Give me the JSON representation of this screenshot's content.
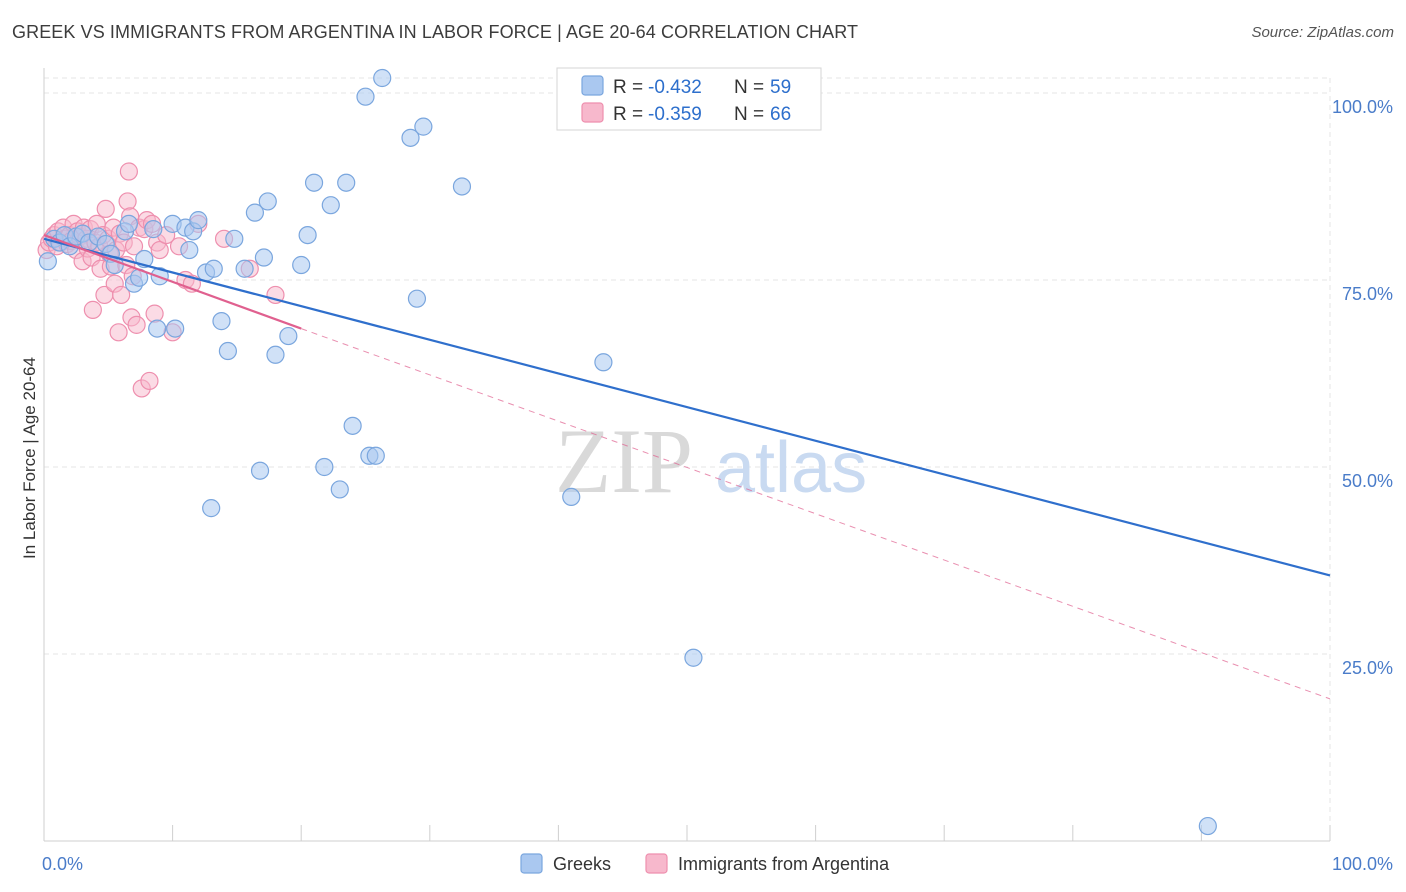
{
  "title": "GREEK VS IMMIGRANTS FROM ARGENTINA IN LABOR FORCE | AGE 20-64 CORRELATION CHART",
  "source": "Source: ZipAtlas.com",
  "watermark": {
    "zip": "ZIP",
    "atlas": "atlas"
  },
  "legend": {
    "rows": [
      {
        "r_label": "R = ",
        "r_value": "-0.432",
        "n_label": "N = ",
        "n_value": "59",
        "color": "#aac8f0"
      },
      {
        "r_label": "R = ",
        "r_value": "-0.359",
        "n_label": "N = ",
        "n_value": "66",
        "color": "#f7b8cc"
      }
    ]
  },
  "colors": {
    "greek_fill": "#aac8f0",
    "greek_stroke": "#7aa6de",
    "greek_line": "#2f6fcc",
    "arg_fill": "#f7b8cc",
    "arg_stroke": "#ee8fae",
    "arg_line": "#e0608f",
    "tick_text": "#4a7cc9"
  },
  "chart_data": {
    "type": "scatter",
    "title": "GREEK VS IMMIGRANTS FROM ARGENTINA IN LABOR FORCE | AGE 20-64 CORRELATION CHART",
    "xlabel": "",
    "ylabel": "In Labor Force | Age 20-64",
    "xlim": [
      0,
      100
    ],
    "ylim": [
      0,
      102
    ],
    "x_tick_labels": [
      "0.0%",
      "100.0%"
    ],
    "y_ticks": [
      {
        "value": 25,
        "label": "25.0%"
      },
      {
        "value": 50,
        "label": "50.0%"
      },
      {
        "value": 75,
        "label": "75.0%"
      },
      {
        "value": 100,
        "label": "100.0%"
      }
    ],
    "grid": true,
    "legend_position": "bottom",
    "series": [
      {
        "name": "Greeks",
        "r": -0.432,
        "n": 59,
        "trend": {
          "x0": 0,
          "y0": 80.5,
          "x1": 100,
          "y1": 35.5
        },
        "points": [
          [
            0.3,
            77.5
          ],
          [
            0.8,
            80.5
          ],
          [
            1.2,
            80.0
          ],
          [
            1.6,
            81.0
          ],
          [
            2.0,
            79.5
          ],
          [
            2.5,
            80.8
          ],
          [
            3.0,
            81.2
          ],
          [
            3.5,
            80.0
          ],
          [
            4.2,
            80.8
          ],
          [
            4.8,
            79.8
          ],
          [
            5.2,
            78.5
          ],
          [
            5.5,
            77.0
          ],
          [
            6.3,
            81.5
          ],
          [
            6.6,
            82.5
          ],
          [
            7.0,
            74.5
          ],
          [
            7.4,
            75.3
          ],
          [
            7.8,
            77.8
          ],
          [
            8.5,
            81.8
          ],
          [
            8.8,
            68.5
          ],
          [
            9.0,
            75.5
          ],
          [
            10.0,
            82.5
          ],
          [
            10.2,
            68.5
          ],
          [
            11.0,
            82.0
          ],
          [
            11.3,
            79.0
          ],
          [
            11.6,
            81.5
          ],
          [
            12.0,
            83.0
          ],
          [
            12.6,
            76.0
          ],
          [
            13.0,
            44.5
          ],
          [
            13.2,
            76.5
          ],
          [
            13.8,
            69.5
          ],
          [
            14.3,
            65.5
          ],
          [
            14.8,
            80.5
          ],
          [
            15.6,
            76.5
          ],
          [
            16.4,
            84.0
          ],
          [
            16.8,
            49.5
          ],
          [
            17.1,
            78.0
          ],
          [
            17.4,
            85.5
          ],
          [
            18.0,
            65.0
          ],
          [
            19.0,
            67.5
          ],
          [
            20.0,
            77.0
          ],
          [
            20.5,
            81.0
          ],
          [
            21.0,
            88.0
          ],
          [
            21.8,
            50.0
          ],
          [
            22.3,
            85.0
          ],
          [
            23.0,
            47.0
          ],
          [
            23.5,
            88.0
          ],
          [
            24.0,
            55.5
          ],
          [
            25.0,
            99.5
          ],
          [
            25.3,
            51.5
          ],
          [
            25.8,
            51.5
          ],
          [
            26.3,
            102.0
          ],
          [
            28.5,
            94.0
          ],
          [
            29.0,
            72.5
          ],
          [
            29.5,
            95.5
          ],
          [
            32.5,
            87.5
          ],
          [
            41.0,
            46.0
          ],
          [
            43.5,
            64.0
          ],
          [
            50.5,
            24.5
          ],
          [
            90.5,
            2.0
          ]
        ]
      },
      {
        "name": "Immigrants from Argentina",
        "r": -0.359,
        "n": 66,
        "trend": {
          "x0": 0,
          "y0": 81.0,
          "x1": 20,
          "y1": 68.5,
          "dash_x1": 100,
          "dash_y1": 19.0
        },
        "points": [
          [
            0.2,
            79.0
          ],
          [
            0.4,
            80.0
          ],
          [
            0.6,
            80.5
          ],
          [
            0.8,
            81.0
          ],
          [
            1.0,
            79.5
          ],
          [
            1.1,
            81.5
          ],
          [
            1.3,
            80.0
          ],
          [
            1.5,
            82.0
          ],
          [
            1.6,
            80.5
          ],
          [
            1.8,
            79.8
          ],
          [
            2.0,
            81.0
          ],
          [
            2.1,
            80.2
          ],
          [
            2.3,
            82.5
          ],
          [
            2.5,
            79.0
          ],
          [
            2.6,
            81.5
          ],
          [
            2.8,
            80.8
          ],
          [
            3.0,
            77.5
          ],
          [
            3.1,
            82.0
          ],
          [
            3.3,
            80.5
          ],
          [
            3.4,
            79.2
          ],
          [
            3.6,
            81.8
          ],
          [
            3.7,
            78.0
          ],
          [
            3.8,
            71.0
          ],
          [
            4.0,
            80.0
          ],
          [
            4.1,
            82.5
          ],
          [
            4.3,
            79.5
          ],
          [
            4.4,
            76.5
          ],
          [
            4.6,
            81.0
          ],
          [
            4.7,
            73.0
          ],
          [
            4.8,
            84.5
          ],
          [
            5.0,
            80.5
          ],
          [
            5.1,
            78.5
          ],
          [
            5.2,
            76.8
          ],
          [
            5.4,
            82.0
          ],
          [
            5.5,
            74.5
          ],
          [
            5.6,
            79.0
          ],
          [
            5.8,
            68.0
          ],
          [
            5.9,
            81.2
          ],
          [
            6.0,
            73.0
          ],
          [
            6.2,
            80.0
          ],
          [
            6.4,
            77.0
          ],
          [
            6.5,
            85.5
          ],
          [
            6.6,
            89.5
          ],
          [
            6.7,
            83.5
          ],
          [
            6.8,
            70.0
          ],
          [
            6.9,
            75.5
          ],
          [
            7.0,
            79.5
          ],
          [
            7.2,
            69.0
          ],
          [
            7.4,
            82.0
          ],
          [
            7.6,
            60.5
          ],
          [
            7.8,
            81.8
          ],
          [
            8.0,
            83.0
          ],
          [
            8.2,
            61.5
          ],
          [
            8.4,
            82.5
          ],
          [
            8.6,
            70.5
          ],
          [
            8.8,
            80.0
          ],
          [
            9.0,
            79.0
          ],
          [
            9.5,
            81.0
          ],
          [
            10.0,
            68.0
          ],
          [
            10.5,
            79.5
          ],
          [
            11.0,
            75.0
          ],
          [
            11.5,
            74.5
          ],
          [
            12.0,
            82.5
          ],
          [
            14.0,
            80.5
          ],
          [
            16.0,
            76.5
          ],
          [
            18.0,
            73.0
          ]
        ]
      }
    ]
  }
}
